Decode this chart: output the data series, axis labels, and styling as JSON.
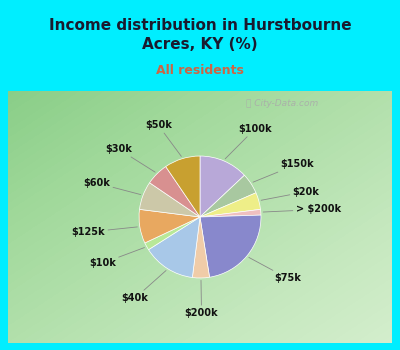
{
  "title": "Income distribution in Hurstbourne\nAcres, KY (%)",
  "subtitle": "All residents",
  "title_color": "#1a1a2e",
  "subtitle_color": "#cc6644",
  "bg_cyan": "#00eeff",
  "chart_panel_color": "#e8f5ee",
  "slices": [
    {
      "label": "$100k",
      "value": 13.0,
      "color": "#b8a8d8"
    },
    {
      "label": "$150k",
      "value": 5.5,
      "color": "#a8c8a0"
    },
    {
      "label": "$20k",
      "value": 4.5,
      "color": "#eeee88"
    },
    {
      "label": "> $200k",
      "value": 1.5,
      "color": "#f0c0c0"
    },
    {
      "label": "$75k",
      "value": 23.0,
      "color": "#8888cc"
    },
    {
      "label": "$200k",
      "value": 4.5,
      "color": "#f0cca8"
    },
    {
      "label": "$40k",
      "value": 14.0,
      "color": "#a8c8e8"
    },
    {
      "label": "$10k",
      "value": 2.0,
      "color": "#b8e898"
    },
    {
      "label": "$125k",
      "value": 9.0,
      "color": "#e8a860"
    },
    {
      "label": "$60k",
      "value": 7.5,
      "color": "#ccc8a8"
    },
    {
      "label": "$30k",
      "value": 6.0,
      "color": "#d89090"
    },
    {
      "label": "$50k",
      "value": 9.5,
      "color": "#c8a030"
    }
  ],
  "figsize": [
    4.0,
    3.5
  ],
  "dpi": 100
}
